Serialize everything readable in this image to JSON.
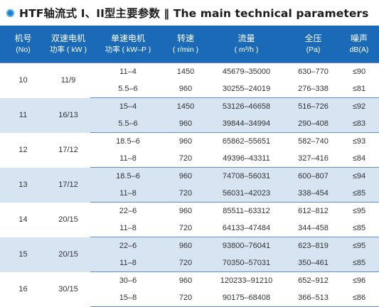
{
  "title": "HTF轴流式 I、II型主要参数 ‖ The main technical parameters",
  "header": [
    {
      "l1": "机号",
      "l2": "(No)"
    },
    {
      "l1": "双速电机",
      "l2": "功率 ( kW )"
    },
    {
      "l1": "单速电机",
      "l2": "功率 ( kW–P )"
    },
    {
      "l1": "转速",
      "l2": "( r/min )"
    },
    {
      "l1": "流量",
      "l2": "( m³/h )"
    },
    {
      "l1": "全压",
      "l2": "(Pa)"
    },
    {
      "l1": "噪声",
      "l2": "dB(A)"
    }
  ],
  "groups": [
    {
      "no": "10",
      "dual": "11/9",
      "rows": [
        {
          "single": "11–4",
          "speed": "1450",
          "flow": "45679–35000",
          "pressure": "630–770",
          "noise": "≤90"
        },
        {
          "single": "5.5–6",
          "speed": "960",
          "flow": "30255–24019",
          "pressure": "276–338",
          "noise": "≤81"
        }
      ]
    },
    {
      "no": "11",
      "dual": "16/13",
      "rows": [
        {
          "single": "15–4",
          "speed": "1450",
          "flow": "53126–46658",
          "pressure": "516–726",
          "noise": "≤92"
        },
        {
          "single": "5.5–6",
          "speed": "960",
          "flow": "39844–34994",
          "pressure": "290–408",
          "noise": "≤83"
        }
      ]
    },
    {
      "no": "12",
      "dual": "17/12",
      "rows": [
        {
          "single": "18.5–6",
          "speed": "960",
          "flow": "65862–55651",
          "pressure": "582–740",
          "noise": "≤93"
        },
        {
          "single": "11–8",
          "speed": "720",
          "flow": "49396–43311",
          "pressure": "327–416",
          "noise": "≤84"
        }
      ]
    },
    {
      "no": "13",
      "dual": "17/12",
      "rows": [
        {
          "single": "18.5–6",
          "speed": "960",
          "flow": "74708–56031",
          "pressure": "600–807",
          "noise": "≤94"
        },
        {
          "single": "11–8",
          "speed": "720",
          "flow": "56031–42023",
          "pressure": "338–454",
          "noise": "≤85"
        }
      ]
    },
    {
      "no": "14",
      "dual": "20/15",
      "rows": [
        {
          "single": "22–6",
          "speed": "960",
          "flow": "85511–63312",
          "pressure": "612–812",
          "noise": "≤95"
        },
        {
          "single": "11–8",
          "speed": "720",
          "flow": "64133–47484",
          "pressure": "344–458",
          "noise": "≤85"
        }
      ]
    },
    {
      "no": "15",
      "dual": "20/15",
      "rows": [
        {
          "single": "22–6",
          "speed": "960",
          "flow": "93800–76041",
          "pressure": "623–819",
          "noise": "≤95"
        },
        {
          "single": "11–8",
          "speed": "720",
          "flow": "70350–57031",
          "pressure": "350–461",
          "noise": "≤85"
        }
      ]
    },
    {
      "no": "16",
      "dual": "30/15",
      "rows": [
        {
          "single": "30–6",
          "speed": "960",
          "flow": "120233–91210",
          "pressure": "652–912",
          "noise": "≤96"
        },
        {
          "single": "15–8",
          "speed": "720",
          "flow": "90175–68408",
          "pressure": "366–513",
          "noise": "≤86"
        }
      ]
    }
  ],
  "colors": {
    "header_bg": "#1b6ab8",
    "shade_bg": "#d7e4f2",
    "bullet": "#1a7fd4"
  }
}
